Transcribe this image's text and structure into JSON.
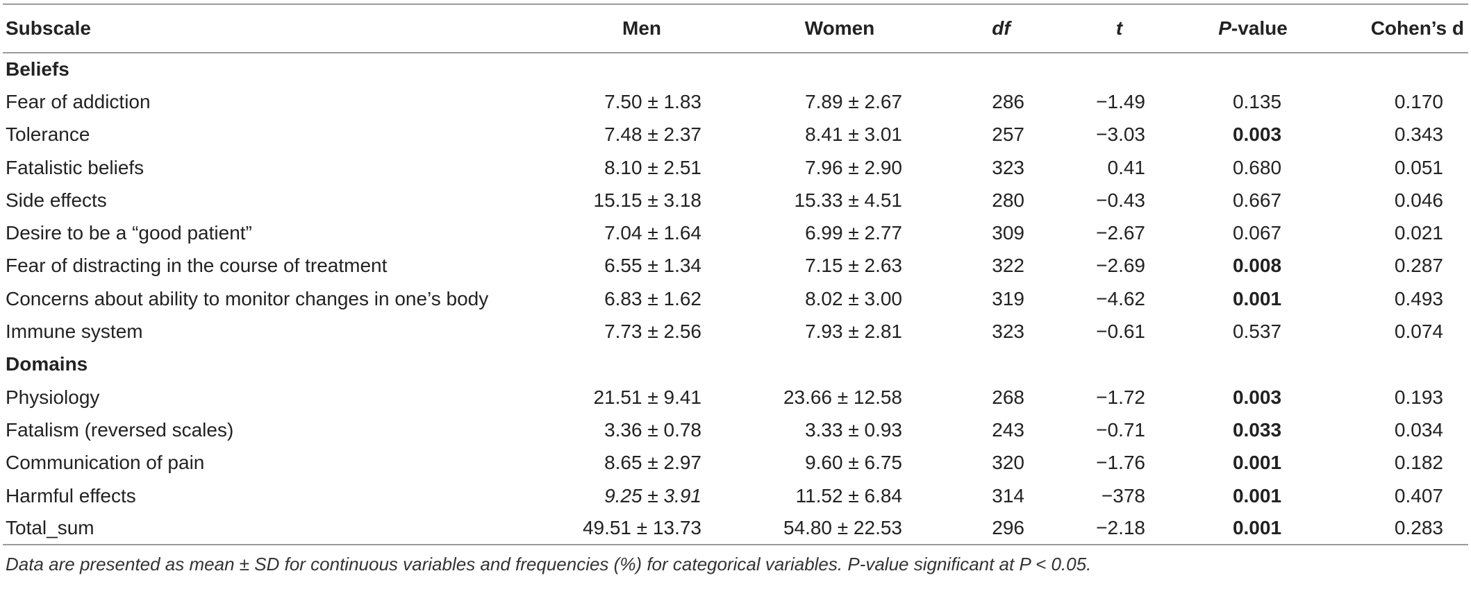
{
  "table": {
    "headers": {
      "subscale": "Subscale",
      "men": "Men",
      "women": "Women",
      "df": "df",
      "t": "t",
      "p_prefix": "P",
      "p_suffix": "-value",
      "cohens_d": "Cohen’s d"
    },
    "sections": [
      {
        "title": "Beliefs",
        "rows": [
          {
            "subscale": "Fear of addiction",
            "men": "7.50 ± 1.83",
            "women": "7.89 ± 2.67",
            "df": "286",
            "t": "−1.49",
            "p": "0.135",
            "d": "0.170"
          },
          {
            "subscale": "Tolerance",
            "men": "7.48 ± 2.37",
            "women": "8.41 ± 3.01",
            "df": "257",
            "t": "−3.03",
            "p": "0.003",
            "d": "0.343"
          },
          {
            "subscale": "Fatalistic beliefs",
            "men": "8.10 ± 2.51",
            "women": "7.96 ± 2.90",
            "df": "323",
            "t": "0.41",
            "p": "0.680",
            "d": "0.051"
          },
          {
            "subscale": "Side effects",
            "men": "15.15 ± 3.18",
            "women": "15.33 ± 4.51",
            "df": "280",
            "t": "−0.43",
            "p": "0.667",
            "d": "0.046"
          },
          {
            "subscale": "Desire to be a “good patient”",
            "men": "7.04 ± 1.64",
            "women": "6.99 ± 2.77",
            "df": "309",
            "t": "−2.67",
            "p": "0.067",
            "d": "0.021"
          },
          {
            "subscale": "Fear of distracting in the course of treatment",
            "men": "6.55 ± 1.34",
            "women": "7.15 ± 2.63",
            "df": "322",
            "t": "−2.69",
            "p": "0.008",
            "d": "0.287"
          },
          {
            "subscale": "Concerns about ability to monitor changes in one’s body",
            "men": "6.83 ± 1.62",
            "women": "8.02 ± 3.00",
            "df": "319",
            "t": "−4.62",
            "p": "0.001",
            "d": "0.493"
          },
          {
            "subscale": "Immune system",
            "men": "7.73 ± 2.56",
            "women": "7.93 ± 2.81",
            "df": "323",
            "t": "−0.61",
            "p": "0.537",
            "d": "0.074"
          }
        ]
      },
      {
        "title": "Domains",
        "rows": [
          {
            "subscale": "Physiology",
            "men": "21.51 ± 9.41",
            "women": "23.66 ± 12.58",
            "df": "268",
            "t": "−1.72",
            "p": "0.003",
            "d": "0.193"
          },
          {
            "subscale": "Fatalism (reversed scales)",
            "men": "3.36 ± 0.78",
            "women": "3.33 ± 0.93",
            "df": "243",
            "t": "−0.71",
            "p": "0.033",
            "d": "0.034"
          },
          {
            "subscale": "Communication of pain",
            "men": "8.65 ± 2.97",
            "women": "9.60 ± 6.75",
            "df": "320",
            "t": "−1.76",
            "p": "0.001",
            "d": "0.182"
          },
          {
            "subscale": "Harmful effects",
            "men": "9.25 ± 3.91",
            "women": "11.52 ± 6.84",
            "df": "314",
            "t": "−378",
            "p": "0.001",
            "d": "0.407"
          },
          {
            "subscale": "Total_sum",
            "men": "49.51 ± 13.73",
            "women": "54.80 ± 22.53",
            "df": "296",
            "t": "−2.18",
            "p": "0.001",
            "d": "0.283"
          }
        ]
      }
    ]
  },
  "footnote": "Data are presented as mean ± SD for continuous variables and frequencies (%) for categorical variables. P-value significant at P < 0.05."
}
